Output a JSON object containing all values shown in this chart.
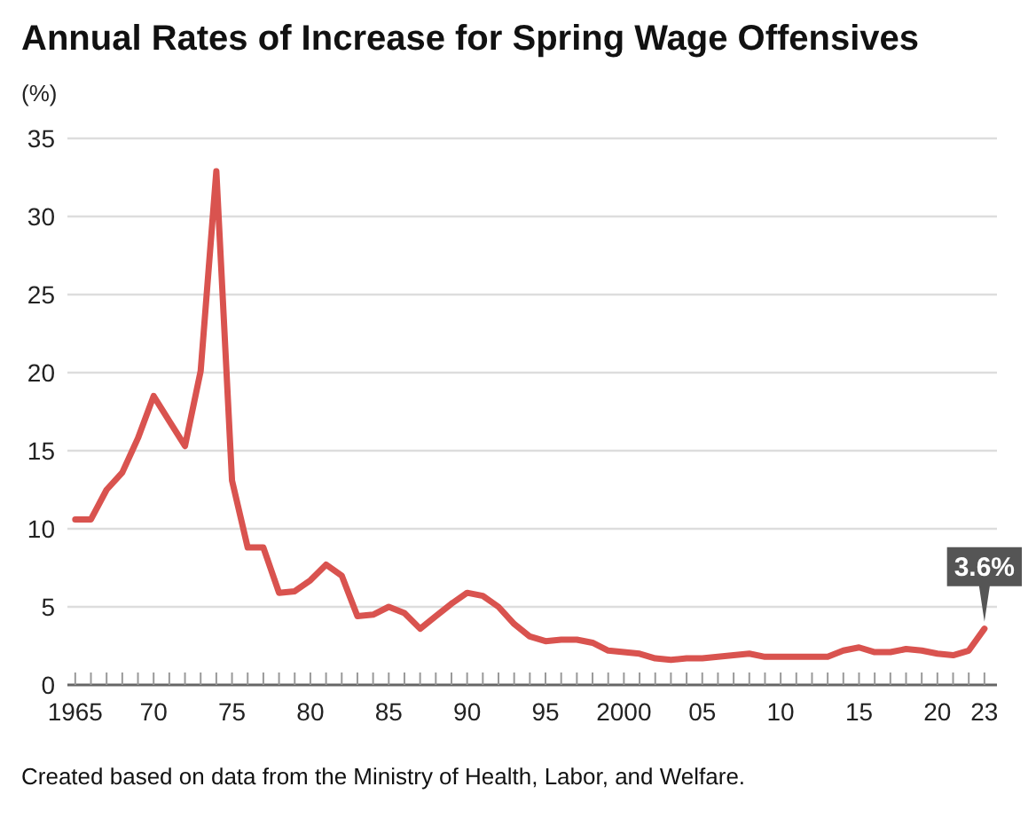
{
  "chart_data": {
    "type": "line",
    "title": "Annual Rates of Increase for Spring Wage Offensives",
    "ylabel": "(%)",
    "annotations": [
      {
        "text": "3.6%",
        "x": 2023,
        "y": 3.6
      },
      "Created based on data from the Ministry of Health, Labor, and Welfare."
    ],
    "x": [
      1965,
      1966,
      1967,
      1968,
      1969,
      1970,
      1971,
      1972,
      1973,
      1974,
      1975,
      1976,
      1977,
      1978,
      1979,
      1980,
      1981,
      1982,
      1983,
      1984,
      1985,
      1986,
      1987,
      1988,
      1989,
      1990,
      1991,
      1992,
      1993,
      1994,
      1995,
      1996,
      1997,
      1998,
      1999,
      2000,
      2001,
      2002,
      2003,
      2004,
      2005,
      2006,
      2007,
      2008,
      2009,
      2010,
      2011,
      2012,
      2013,
      2014,
      2015,
      2016,
      2017,
      2018,
      2019,
      2020,
      2021,
      2022,
      2023
    ],
    "series": [
      {
        "color": "#d9534f",
        "values": [
          10.6,
          10.6,
          12.5,
          13.6,
          15.8,
          18.5,
          16.9,
          15.3,
          20.1,
          32.9,
          13.1,
          8.8,
          8.8,
          5.9,
          6.0,
          6.7,
          7.7,
          7.0,
          4.4,
          4.5,
          5.0,
          4.6,
          3.6,
          4.4,
          5.2,
          5.9,
          5.7,
          5.0,
          3.9,
          3.1,
          2.8,
          2.9,
          2.9,
          2.7,
          2.2,
          2.1,
          2.0,
          1.7,
          1.6,
          1.7,
          1.7,
          1.8,
          1.9,
          2.0,
          1.8,
          1.8,
          1.8,
          1.8,
          1.8,
          2.2,
          2.4,
          2.1,
          2.1,
          2.3,
          2.2,
          2.0,
          1.9,
          2.2,
          3.6
        ]
      }
    ],
    "xlim": [
      1964.5,
      2023.8
    ],
    "ylim": [
      0,
      35
    ],
    "xticks": [
      {
        "value": 1965,
        "label": "1965"
      },
      {
        "value": 1966,
        "label": null
      },
      {
        "value": 1967,
        "label": null
      },
      {
        "value": 1968,
        "label": null
      },
      {
        "value": 1969,
        "label": null
      },
      {
        "value": 1970,
        "label": "70"
      },
      {
        "value": 1971,
        "label": null
      },
      {
        "value": 1972,
        "label": null
      },
      {
        "value": 1973,
        "label": null
      },
      {
        "value": 1974,
        "label": null
      },
      {
        "value": 1975,
        "label": "75"
      },
      {
        "value": 1976,
        "label": null
      },
      {
        "value": 1977,
        "label": null
      },
      {
        "value": 1978,
        "label": null
      },
      {
        "value": 1979,
        "label": null
      },
      {
        "value": 1980,
        "label": "80"
      },
      {
        "value": 1981,
        "label": null
      },
      {
        "value": 1982,
        "label": null
      },
      {
        "value": 1983,
        "label": null
      },
      {
        "value": 1984,
        "label": null
      },
      {
        "value": 1985,
        "label": "85"
      },
      {
        "value": 1986,
        "label": null
      },
      {
        "value": 1987,
        "label": null
      },
      {
        "value": 1988,
        "label": null
      },
      {
        "value": 1989,
        "label": null
      },
      {
        "value": 1990,
        "label": "90"
      },
      {
        "value": 1991,
        "label": null
      },
      {
        "value": 1992,
        "label": null
      },
      {
        "value": 1993,
        "label": null
      },
      {
        "value": 1994,
        "label": null
      },
      {
        "value": 1995,
        "label": "95"
      },
      {
        "value": 1996,
        "label": null
      },
      {
        "value": 1997,
        "label": null
      },
      {
        "value": 1998,
        "label": null
      },
      {
        "value": 1999,
        "label": null
      },
      {
        "value": 2000,
        "label": "2000"
      },
      {
        "value": 2001,
        "label": null
      },
      {
        "value": 2002,
        "label": null
      },
      {
        "value": 2003,
        "label": null
      },
      {
        "value": 2004,
        "label": null
      },
      {
        "value": 2005,
        "label": "05"
      },
      {
        "value": 2006,
        "label": null
      },
      {
        "value": 2007,
        "label": null
      },
      {
        "value": 2008,
        "label": null
      },
      {
        "value": 2009,
        "label": null
      },
      {
        "value": 2010,
        "label": "10"
      },
      {
        "value": 2011,
        "label": null
      },
      {
        "value": 2012,
        "label": null
      },
      {
        "value": 2013,
        "label": null
      },
      {
        "value": 2014,
        "label": null
      },
      {
        "value": 2015,
        "label": "15"
      },
      {
        "value": 2016,
        "label": null
      },
      {
        "value": 2017,
        "label": null
      },
      {
        "value": 2018,
        "label": null
      },
      {
        "value": 2019,
        "label": null
      },
      {
        "value": 2020,
        "label": "20"
      },
      {
        "value": 2021,
        "label": null
      },
      {
        "value": 2022,
        "label": null
      },
      {
        "value": 2023,
        "label": "23"
      }
    ],
    "yticks": [
      0,
      5,
      10,
      15,
      20,
      25,
      30,
      35
    ],
    "grid": "y",
    "line_style": "solid"
  }
}
